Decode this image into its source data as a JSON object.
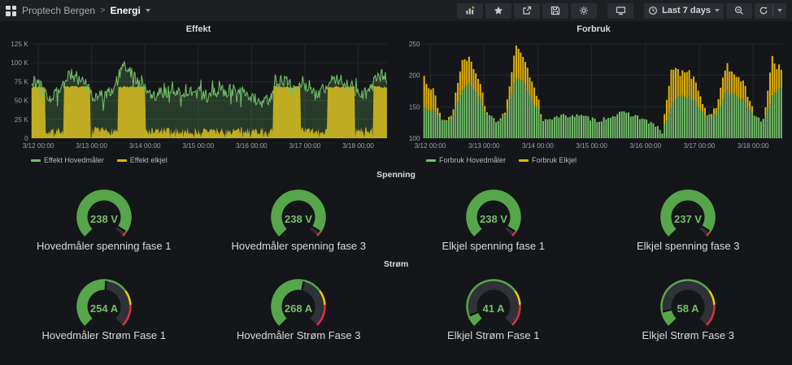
{
  "nav": {
    "breadcrumb": {
      "root": "Proptech Bergen",
      "separator": ">",
      "current": "Energi"
    },
    "time_picker": {
      "label": "Last 7 days"
    },
    "icons": [
      "apps-grid",
      "add-panel",
      "star",
      "share",
      "save",
      "settings",
      "cycle-view",
      "clock",
      "caret-down",
      "zoom-out",
      "refresh"
    ]
  },
  "chart_data": [
    {
      "type": "area",
      "title": "Effekt",
      "ylim": [
        0,
        125000
      ],
      "grid": true,
      "legend_position": "bottom-left",
      "y_ticks": [
        {
          "label": "0",
          "value": 0
        },
        {
          "label": "25 K",
          "value": 25
        },
        {
          "label": "50 K",
          "value": 50
        },
        {
          "label": "75 K",
          "value": 75
        },
        {
          "label": "100 K",
          "value": 100
        },
        {
          "label": "125 K",
          "value": 125
        }
      ],
      "x_ticks": [
        {
          "label": "3/12 00:00",
          "f": 0.019
        },
        {
          "label": "3/13 00:00",
          "f": 0.169
        },
        {
          "label": "3/14 00:00",
          "f": 0.319
        },
        {
          "label": "3/15 00:00",
          "f": 0.469
        },
        {
          "label": "3/16 00:00",
          "f": 0.619
        },
        {
          "label": "3/17 00:00",
          "f": 0.769
        },
        {
          "label": "3/18 00:00",
          "f": 0.919
        }
      ],
      "resolution_hours": 4,
      "series": [
        {
          "name": "Effekt Hovedmåler",
          "color": "#73bf69",
          "render": "noisy-line-area",
          "jitter_k": 9,
          "values_k": [
            75,
            70,
            55,
            60,
            85,
            80,
            70,
            55,
            55,
            65,
            95,
            85,
            70,
            58,
            60,
            62,
            63,
            62,
            60,
            58,
            60,
            62,
            63,
            60,
            55,
            50,
            48,
            80,
            78,
            72,
            65,
            58,
            65,
            82,
            78,
            70,
            60,
            58,
            85,
            80
          ]
        },
        {
          "name": "Effekt elkjel",
          "color": "#e6b40e",
          "render": "step-area",
          "high_level_k": 68,
          "low_band_k": [
            4,
            15
          ],
          "values_k": [
            68,
            68,
            10,
            10,
            68,
            68,
            68,
            10,
            10,
            10,
            68,
            68,
            68,
            10,
            10,
            10,
            10,
            10,
            10,
            10,
            10,
            10,
            10,
            10,
            10,
            10,
            10,
            68,
            68,
            68,
            10,
            10,
            10,
            68,
            68,
            68,
            10,
            10,
            68,
            68
          ]
        }
      ]
    },
    {
      "type": "bar",
      "title": "Forbruk",
      "stacked": true,
      "bars": 160,
      "ylim": [
        100,
        250
      ],
      "grid": true,
      "legend_position": "bottom-left",
      "y_ticks": [
        {
          "label": "100",
          "value": 100
        },
        {
          "label": "150",
          "value": 150
        },
        {
          "label": "200",
          "value": 200
        },
        {
          "label": "250",
          "value": 250
        }
      ],
      "x_ticks": [
        {
          "label": "3/12 00:00",
          "f": 0.019
        },
        {
          "label": "3/13 00:00",
          "f": 0.169
        },
        {
          "label": "3/14 00:00",
          "f": 0.319
        },
        {
          "label": "3/15 00:00",
          "f": 0.469
        },
        {
          "label": "3/16 00:00",
          "f": 0.619
        },
        {
          "label": "3/17 00:00",
          "f": 0.769
        },
        {
          "label": "3/18 00:00",
          "f": 0.919
        }
      ],
      "resolution_hours": 4,
      "series": [
        {
          "name": "Forbruk Hovedmåler",
          "color": "#73bf69",
          "values": [
            150,
            145,
            128,
            130,
            175,
            190,
            165,
            135,
            127,
            140,
            195,
            185,
            155,
            130,
            132,
            135,
            137,
            135,
            132,
            128,
            133,
            138,
            140,
            136,
            130,
            122,
            110,
            150,
            170,
            165,
            150,
            132,
            140,
            175,
            168,
            160,
            133,
            128,
            165,
            180
          ]
        },
        {
          "name": "Forbruk Elkjel",
          "color": "#e6b40e",
          "values": [
            50,
            30,
            0,
            5,
            45,
            40,
            30,
            0,
            0,
            10,
            50,
            40,
            25,
            0,
            0,
            0,
            0,
            0,
            0,
            0,
            0,
            0,
            0,
            0,
            0,
            0,
            0,
            60,
            35,
            40,
            25,
            0,
            15,
            40,
            35,
            30,
            0,
            0,
            60,
            25
          ]
        }
      ]
    }
  ],
  "sections": [
    {
      "title": "Spenning",
      "gauges": [
        {
          "display": "238 V",
          "value": 238,
          "unit": "V",
          "min": 0,
          "max": 250,
          "label": "Hovedmåler spenning fase 1",
          "thresholds": [
            {
              "value": 0,
              "color": "green"
            },
            {
              "value": 240,
              "color": "red"
            }
          ]
        },
        {
          "display": "238 V",
          "value": 238,
          "unit": "V",
          "min": 0,
          "max": 250,
          "label": "Hovedmåler spenning fase 3",
          "thresholds": [
            {
              "value": 0,
              "color": "green"
            },
            {
              "value": 240,
              "color": "red"
            }
          ]
        },
        {
          "display": "238 V",
          "value": 238,
          "unit": "V",
          "min": 0,
          "max": 250,
          "label": "Elkjel spenning fase 1",
          "thresholds": [
            {
              "value": 0,
              "color": "green"
            },
            {
              "value": 240,
              "color": "red"
            }
          ]
        },
        {
          "display": "237 V",
          "value": 237,
          "unit": "V",
          "min": 0,
          "max": 250,
          "label": "Elkjel spenning fase 3",
          "thresholds": [
            {
              "value": 0,
              "color": "green"
            },
            {
              "value": 240,
              "color": "red"
            }
          ]
        }
      ]
    },
    {
      "title": "Strøm",
      "gauges": [
        {
          "display": "254 A",
          "value": 254,
          "unit": "A",
          "min": 0,
          "max": 500,
          "label": "Hovedmåler Strøm Fase 1",
          "thresholds": [
            {
              "value": 0,
              "color": "green"
            },
            {
              "value": 350,
              "color": "yellow"
            },
            {
              "value": 410,
              "color": "red"
            }
          ]
        },
        {
          "display": "268 A",
          "value": 268,
          "unit": "A",
          "min": 0,
          "max": 500,
          "label": "Hovedmåler Strøm Fase 3",
          "thresholds": [
            {
              "value": 0,
              "color": "green"
            },
            {
              "value": 350,
              "color": "yellow"
            },
            {
              "value": 410,
              "color": "red"
            }
          ]
        },
        {
          "display": "41 A",
          "value": 41,
          "unit": "A",
          "min": 0,
          "max": 500,
          "label": "Elkjel Strøm Fase 1",
          "thresholds": [
            {
              "value": 0,
              "color": "green"
            },
            {
              "value": 350,
              "color": "yellow"
            },
            {
              "value": 410,
              "color": "red"
            }
          ]
        },
        {
          "display": "58 A",
          "value": 58,
          "unit": "A",
          "min": 0,
          "max": 500,
          "label": "Elkjel Strøm Fase 3",
          "thresholds": [
            {
              "value": 0,
              "color": "green"
            },
            {
              "value": 350,
              "color": "yellow"
            },
            {
              "value": 410,
              "color": "red"
            }
          ]
        }
      ]
    }
  ],
  "colors": {
    "background": "#141619",
    "navbar_bg": "#1d1f23",
    "button_bg": "#2a2d32",
    "grid_line": "#25282b",
    "axis_text": "#9da0a5",
    "text_primary": "#d8d9da",
    "series_green": "#73bf69",
    "series_green_fill": "rgba(115,191,105,0.22)",
    "series_yellow": "#e6b40e",
    "gauge_green": "#57a64b",
    "gauge_track": "#2f3237",
    "gauge_tip": "#101114",
    "threshold_yellow": "#f2cc0c",
    "threshold_red": "#e02f44",
    "value_text": "#73bf69"
  }
}
